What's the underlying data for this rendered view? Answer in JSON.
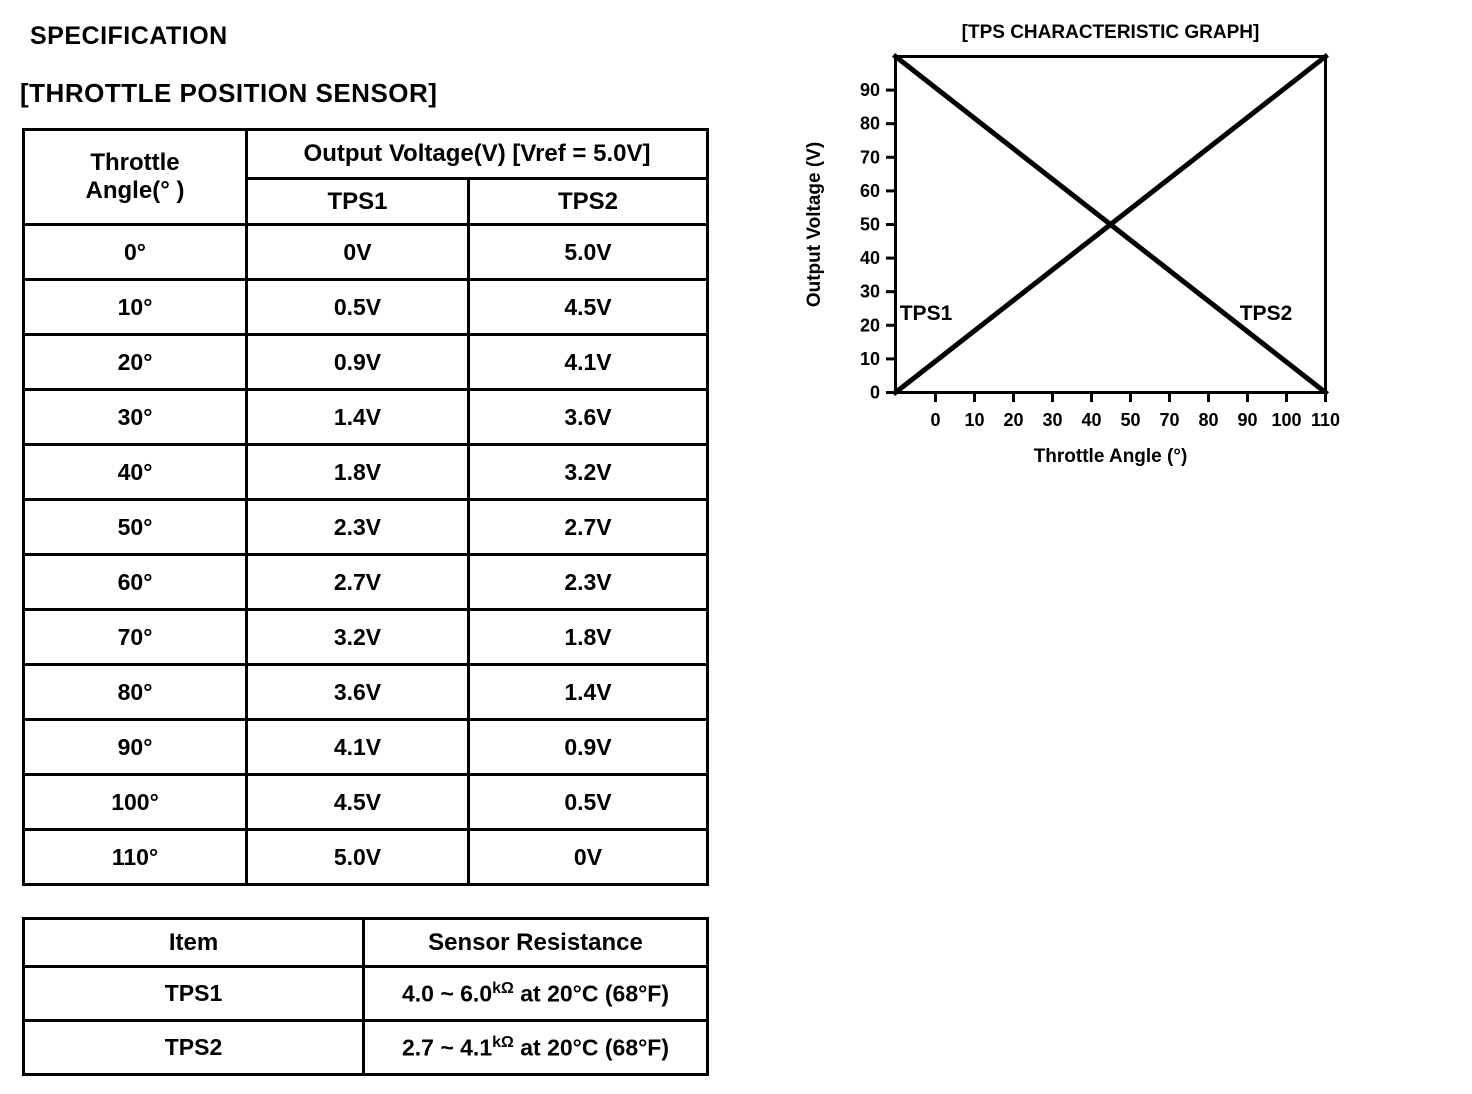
{
  "page": {
    "title": "SPECIFICATION",
    "subtitle": "[THROTTLE POSITION SENSOR]"
  },
  "voltage_table": {
    "corner_header": [
      "Throttle",
      "Angle(° )"
    ],
    "span_header": "Output Voltage(V) [Vref = 5.0V]",
    "sub_headers": [
      "TPS1",
      "TPS2"
    ],
    "rows": [
      {
        "angle": "0°",
        "tps1": "0V",
        "tps2": "5.0V"
      },
      {
        "angle": "10°",
        "tps1": "0.5V",
        "tps2": "4.5V"
      },
      {
        "angle": "20°",
        "tps1": "0.9V",
        "tps2": "4.1V"
      },
      {
        "angle": "30°",
        "tps1": "1.4V",
        "tps2": "3.6V"
      },
      {
        "angle": "40°",
        "tps1": "1.8V",
        "tps2": "3.2V"
      },
      {
        "angle": "50°",
        "tps1": "2.3V",
        "tps2": "2.7V"
      },
      {
        "angle": "60°",
        "tps1": "2.7V",
        "tps2": "2.3V"
      },
      {
        "angle": "70°",
        "tps1": "3.2V",
        "tps2": "1.8V"
      },
      {
        "angle": "80°",
        "tps1": "3.6V",
        "tps2": "1.4V"
      },
      {
        "angle": "90°",
        "tps1": "4.1V",
        "tps2": "0.9V"
      },
      {
        "angle": "100°",
        "tps1": "4.5V",
        "tps2": "0.5V"
      },
      {
        "angle": "110°",
        "tps1": "5.0V",
        "tps2": "0V"
      }
    ]
  },
  "resistance_table": {
    "headers": [
      "Item",
      "Sensor Resistance"
    ],
    "rows": [
      {
        "item": "TPS1",
        "range": "4.0 ~ 6.0",
        "unit": "kΩ",
        "condition": " at 20°C (68°F)"
      },
      {
        "item": "TPS2",
        "range": "2.7 ~ 4.1",
        "unit": "kΩ",
        "condition": " at 20°C (68°F)"
      }
    ]
  },
  "chart_data": {
    "type": "line",
    "title": "[TPS CHARACTERISTIC GRAPH]",
    "xlabel": "Throttle Angle (°)",
    "ylabel": "Output Voltage (V)",
    "x_ticks": [
      "0",
      "10",
      "20",
      "30",
      "40",
      "50",
      "70",
      "80",
      "90",
      "100",
      "110"
    ],
    "y_ticks": [
      "90",
      "80",
      "70",
      "60",
      "50",
      "40",
      "30",
      "20",
      "10",
      "0"
    ],
    "xlim": [
      0,
      110
    ],
    "ylim": [
      0,
      100
    ],
    "grid": false,
    "frame": "full-box",
    "legend_position": "inline-annotations",
    "series": [
      {
        "name": "TPS1",
        "points": [
          [
            0,
            0
          ],
          [
            110,
            100
          ]
        ],
        "direction": "rising"
      },
      {
        "name": "TPS2",
        "points": [
          [
            0,
            100
          ],
          [
            110,
            0
          ]
        ],
        "direction": "falling"
      }
    ]
  }
}
